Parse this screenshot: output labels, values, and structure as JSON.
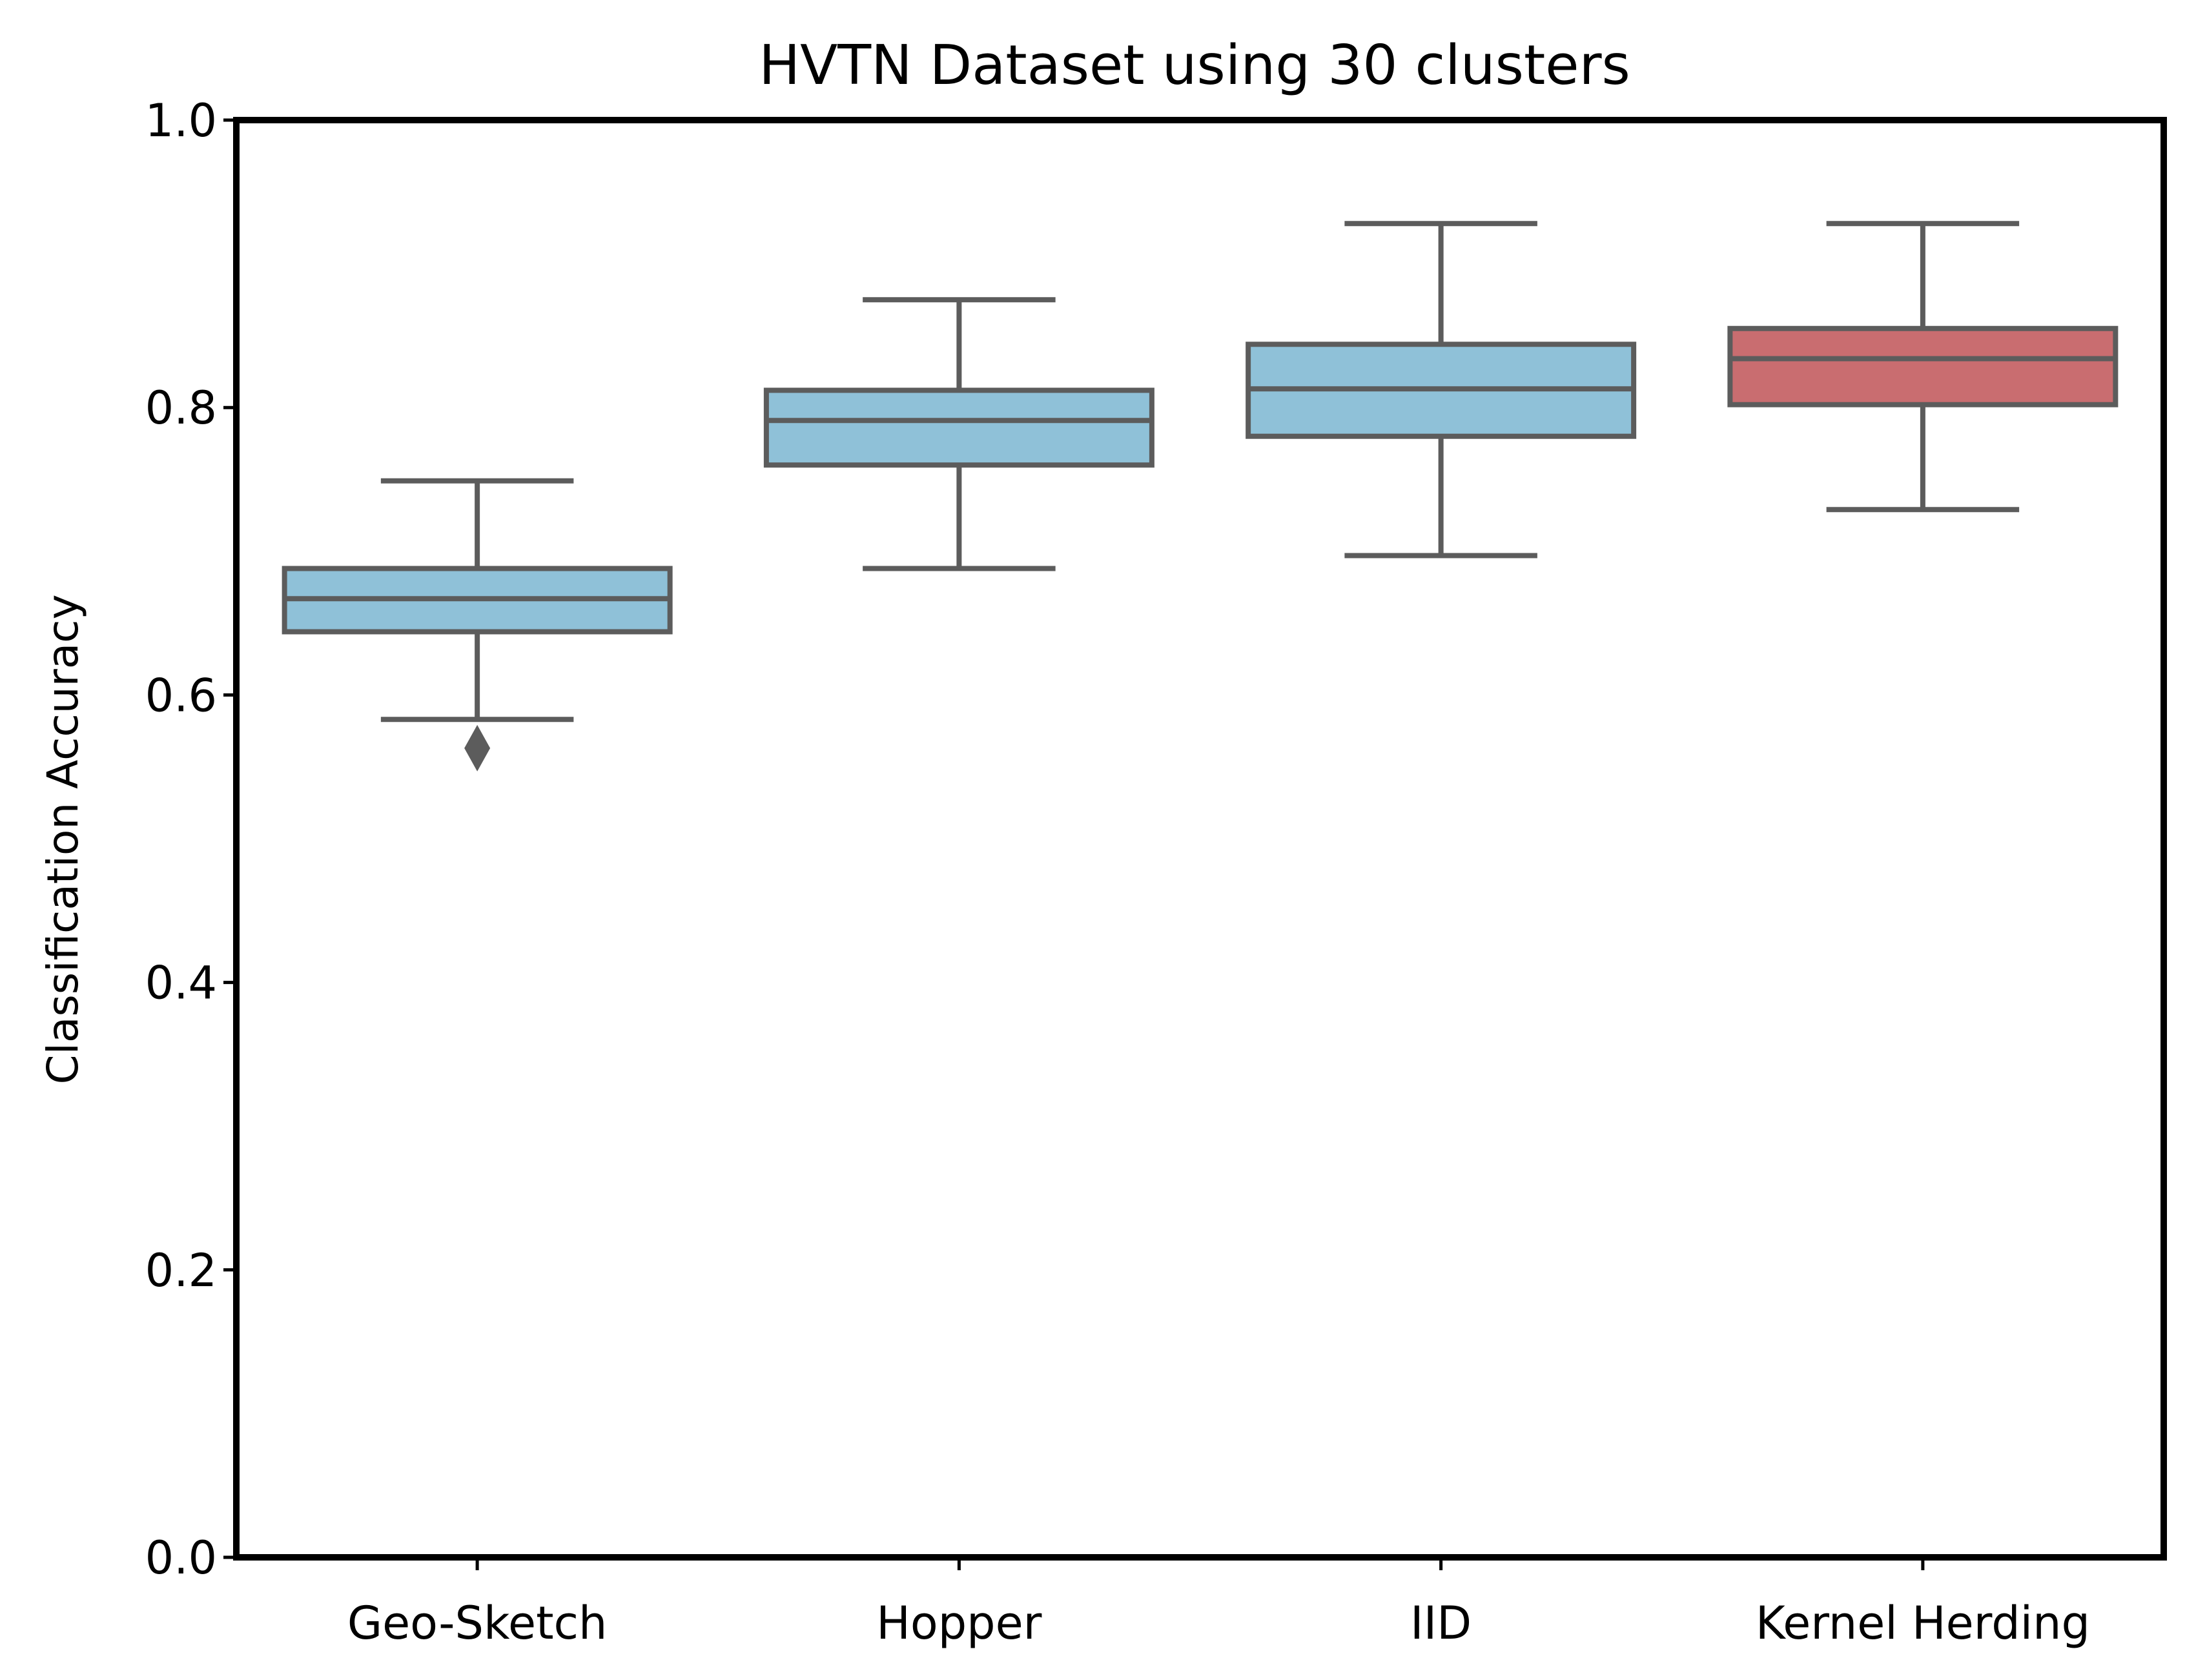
{
  "chart_data": {
    "type": "box",
    "title": "HVTN Dataset using 30 clusters",
    "xlabel": "",
    "ylabel": "Classification Accuracy",
    "ylim": [
      0.0,
      1.0
    ],
    "yticks": [
      0.0,
      0.2,
      0.4,
      0.6,
      0.8,
      1.0
    ],
    "ytick_labels": [
      "0.0",
      "0.2",
      "0.4",
      "0.6",
      "0.8",
      "1.0"
    ],
    "grid": false,
    "categories": [
      "Geo-Sketch",
      "Hopper",
      "IID",
      "Kernel Herding"
    ],
    "boxes": [
      {
        "category": "Geo-Sketch",
        "whisker_low": 0.583,
        "q1": 0.644,
        "median": 0.667,
        "q3": 0.688,
        "whisker_high": 0.749,
        "outliers": [
          0.563
        ],
        "color": "#8fc1d8"
      },
      {
        "category": "Hopper",
        "whisker_low": 0.688,
        "q1": 0.76,
        "median": 0.791,
        "q3": 0.812,
        "whisker_high": 0.875,
        "outliers": [],
        "color": "#8fc1d8"
      },
      {
        "category": "IID",
        "whisker_low": 0.697,
        "q1": 0.78,
        "median": 0.813,
        "q3": 0.844,
        "whisker_high": 0.928,
        "outliers": [],
        "color": "#8fc1d8"
      },
      {
        "category": "Kernel Herding",
        "whisker_low": 0.729,
        "q1": 0.802,
        "median": 0.834,
        "q3": 0.855,
        "whisker_high": 0.928,
        "outliers": [],
        "color": "#c96d70"
      }
    ],
    "line_color": "#5c5c5c",
    "frame_color": "#000000"
  }
}
